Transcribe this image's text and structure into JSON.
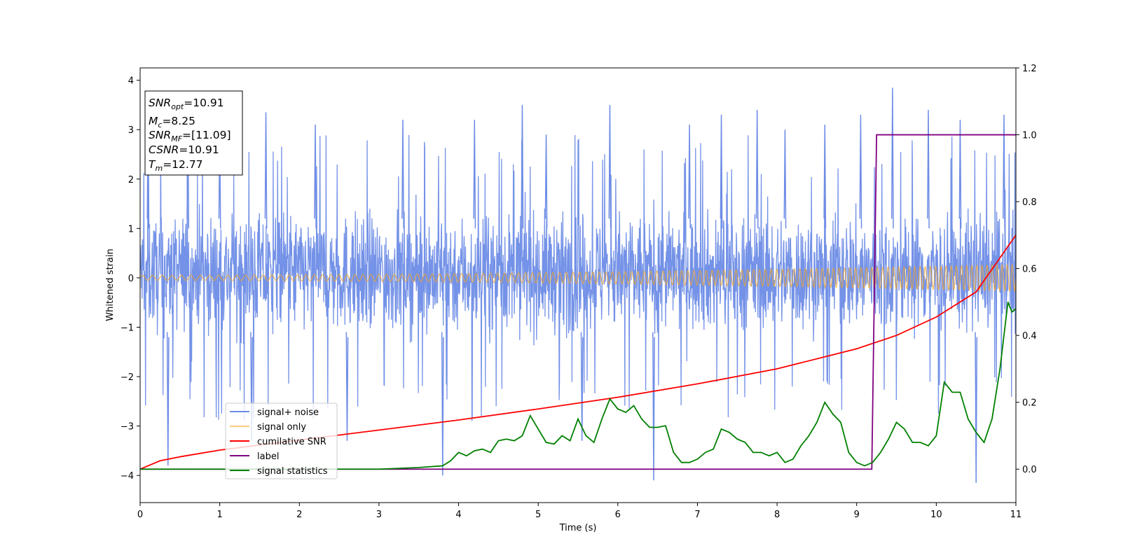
{
  "chart_data": {
    "type": "line",
    "xlabel": "Time (s)",
    "ylabel": "Whitened strain",
    "xlim": [
      0,
      11
    ],
    "ylim": [
      -4.55,
      4.25
    ],
    "y2lim": [
      -0.1,
      1.2
    ],
    "x_ticks": [
      "0",
      "1",
      "2",
      "3",
      "4",
      "5",
      "6",
      "7",
      "8",
      "9",
      "10",
      "11"
    ],
    "y_ticks": [
      "−4",
      "−3",
      "−2",
      "−1",
      "0",
      "1",
      "2",
      "3",
      "4"
    ],
    "y2_ticks": [
      "0.0",
      "0.2",
      "0.4",
      "0.6",
      "0.8",
      "1.0",
      "1.2"
    ],
    "grid": false,
    "legend_position": "lower-left",
    "info_box": [
      {
        "base": "SNR",
        "sub": "opt",
        "value": "=10.91"
      },
      {
        "base": "M",
        "sub": "c",
        "value": "=8.25"
      },
      {
        "base": "SNR",
        "sub": "MF",
        "value": "=[11.09]"
      },
      {
        "base": "CSNR",
        "sub": "",
        "value": "=10.91"
      },
      {
        "base": "T",
        "sub": "m",
        "value": "=12.77"
      }
    ],
    "series": [
      {
        "name": "signal+ noise",
        "axis": "left",
        "color": "#6d8ce6",
        "kind": "noise_envelope",
        "typical_range": [
          -1.8,
          2.0
        ],
        "x_peaks": [
          0.1,
          0.35,
          0.6,
          1.0,
          1.4,
          1.58,
          2.2,
          2.6,
          3.3,
          3.8,
          4.2,
          4.8,
          5.1,
          5.55,
          5.9,
          6.45,
          6.9,
          7.3,
          7.75,
          8.1,
          8.6,
          9.05,
          9.45,
          9.9,
          10.3,
          10.5,
          10.85
        ],
        "y_peaks": [
          3.3,
          -3.8,
          3.0,
          2.9,
          -3.3,
          3.35,
          3.1,
          -3.3,
          3.2,
          -4.0,
          3.2,
          3.5,
          2.9,
          -3.3,
          3.5,
          -4.1,
          3.1,
          3.3,
          3.4,
          3.0,
          3.1,
          3.3,
          3.85,
          3.4,
          3.2,
          -4.15,
          3.3
        ]
      },
      {
        "name": "signal only",
        "axis": "left",
        "color": "#f5a623",
        "kind": "chirp",
        "amplitude_start": 0.05,
        "amplitude_end": 0.27,
        "frequency_start_hz": 8,
        "frequency_end_hz": 16
      },
      {
        "name": "cumilative SNR",
        "axis": "right",
        "color": "#ff0000",
        "x": [
          0,
          0.25,
          0.5,
          1,
          2,
          3,
          4,
          5,
          6,
          7,
          8,
          9,
          9.5,
          10,
          10.5,
          11
        ],
        "y": [
          0.0,
          0.025,
          0.037,
          0.057,
          0.087,
          0.117,
          0.147,
          0.18,
          0.215,
          0.255,
          0.3,
          0.36,
          0.4,
          0.455,
          0.53,
          0.7
        ]
      },
      {
        "name": "label",
        "axis": "right",
        "color": "#800080",
        "x": [
          0,
          9.19,
          9.25,
          11
        ],
        "y": [
          0,
          0,
          1,
          1
        ]
      },
      {
        "name": "signal statistics",
        "axis": "right",
        "color": "#008000",
        "x": [
          0,
          0.5,
          1,
          1.5,
          2,
          2.5,
          3,
          3.5,
          3.8,
          3.9,
          4.0,
          4.1,
          4.2,
          4.3,
          4.4,
          4.5,
          4.6,
          4.7,
          4.8,
          4.9,
          5.0,
          5.1,
          5.2,
          5.3,
          5.4,
          5.5,
          5.6,
          5.7,
          5.8,
          5.9,
          6.0,
          6.1,
          6.2,
          6.3,
          6.4,
          6.5,
          6.6,
          6.7,
          6.8,
          6.9,
          7.0,
          7.1,
          7.2,
          7.3,
          7.4,
          7.5,
          7.6,
          7.7,
          7.8,
          7.9,
          8.0,
          8.1,
          8.2,
          8.3,
          8.4,
          8.5,
          8.6,
          8.7,
          8.8,
          8.9,
          9.0,
          9.1,
          9.2,
          9.3,
          9.4,
          9.5,
          9.6,
          9.7,
          9.8,
          9.9,
          10.0,
          10.1,
          10.2,
          10.3,
          10.4,
          10.5,
          10.6,
          10.7,
          10.8,
          10.9,
          10.95,
          11
        ],
        "y": [
          0.0,
          0.0,
          0.0,
          0.0,
          0.0,
          0.0,
          0.0,
          0.005,
          0.01,
          0.025,
          0.05,
          0.04,
          0.055,
          0.06,
          0.05,
          0.085,
          0.09,
          0.085,
          0.1,
          0.16,
          0.12,
          0.08,
          0.075,
          0.1,
          0.085,
          0.15,
          0.1,
          0.08,
          0.15,
          0.21,
          0.18,
          0.17,
          0.19,
          0.15,
          0.125,
          0.125,
          0.13,
          0.05,
          0.02,
          0.02,
          0.03,
          0.05,
          0.06,
          0.12,
          0.11,
          0.09,
          0.08,
          0.05,
          0.05,
          0.04,
          0.05,
          0.02,
          0.03,
          0.07,
          0.1,
          0.14,
          0.2,
          0.165,
          0.14,
          0.05,
          0.02,
          0.01,
          0.02,
          0.05,
          0.09,
          0.14,
          0.12,
          0.08,
          0.08,
          0.07,
          0.1,
          0.26,
          0.23,
          0.23,
          0.15,
          0.11,
          0.08,
          0.15,
          0.3,
          0.5,
          0.47,
          0.48
        ]
      }
    ]
  }
}
